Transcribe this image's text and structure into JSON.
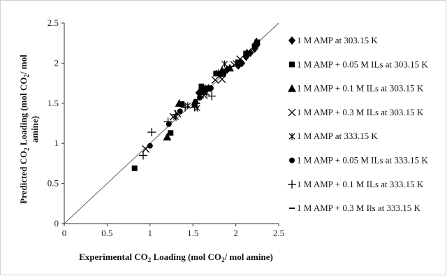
{
  "chart_data": {
    "type": "scatter",
    "xlabel": {
      "pre": "Experimental CO",
      "sub": "2",
      "mid": " Loading (mol CO",
      "sub2": "2",
      "post": "/ mol amine)"
    },
    "ylabel": {
      "line1_pre": "Predicted CO",
      "line1_sub": "2",
      "line1_mid": " Loading (mol CO",
      "line1_sub2": "2",
      "line1_post": "/ mol",
      "line2": "amine)"
    },
    "xlim": [
      0,
      2.5
    ],
    "ylim": [
      0,
      2.5
    ],
    "xticks": [
      "0",
      "0.5",
      "1",
      "1.5",
      "2",
      "2.5"
    ],
    "yticks": [
      "0",
      "0.5",
      "1",
      "1.5",
      "2",
      "2.5"
    ],
    "grid": false,
    "parity_line": true,
    "legend_position": "right",
    "series": [
      {
        "name": "1 M AMP at 303.15 K",
        "marker": "diamond",
        "points": [
          [
            1.57,
            1.63
          ],
          [
            1.62,
            1.65
          ],
          [
            1.65,
            1.68
          ],
          [
            1.82,
            1.86
          ],
          [
            1.9,
            1.92
          ],
          [
            2.03,
            1.97
          ],
          [
            2.07,
            2.0
          ],
          [
            2.12,
            2.08
          ],
          [
            2.17,
            2.13
          ],
          [
            2.22,
            2.18
          ],
          [
            2.24,
            2.22
          ]
        ]
      },
      {
        "name": "1 M AMP + 0.05 M ILs at 303.15 K",
        "marker": "square",
        "points": [
          [
            0.82,
            0.69
          ],
          [
            1.24,
            1.13
          ],
          [
            1.37,
            1.49
          ],
          [
            1.52,
            1.48
          ],
          [
            1.6,
            1.71
          ],
          [
            1.77,
            1.87
          ],
          [
            2.03,
            2.01
          ],
          [
            2.12,
            2.12
          ],
          [
            2.22,
            2.21
          ],
          [
            2.25,
            2.26
          ]
        ]
      },
      {
        "name": "1 M AMP + 0.1 M ILs at 303.15 K",
        "marker": "triangle",
        "points": [
          [
            1.2,
            1.08
          ],
          [
            1.34,
            1.5
          ],
          [
            1.6,
            1.67
          ],
          [
            1.68,
            1.69
          ],
          [
            1.84,
            1.91
          ],
          [
            1.93,
            1.94
          ],
          [
            2.13,
            2.13
          ],
          [
            2.24,
            2.27
          ]
        ]
      },
      {
        "name": "1 M AMP + 0.3 M ILs at 303.15 K",
        "marker": "x",
        "points": [
          [
            0.95,
            0.93
          ],
          [
            1.27,
            1.33
          ],
          [
            1.32,
            1.37
          ],
          [
            1.63,
            1.6
          ],
          [
            1.76,
            1.79
          ],
          [
            1.84,
            1.8
          ],
          [
            1.98,
            1.98
          ],
          [
            2.05,
            2.05
          ]
        ]
      },
      {
        "name": "1 M AMP at 333.15 K",
        "marker": "asterisk",
        "points": [
          [
            1.3,
            1.33
          ],
          [
            1.44,
            1.47
          ],
          [
            1.55,
            1.44
          ],
          [
            1.66,
            1.63
          ],
          [
            1.8,
            1.88
          ],
          [
            1.87,
            1.99
          ],
          [
            2.0,
            2.0
          ]
        ]
      },
      {
        "name": "1 M AMP + 0.05 M ILs at 333.15 K",
        "marker": "circle",
        "points": [
          [
            1.0,
            0.97
          ],
          [
            1.22,
            1.24
          ],
          [
            1.35,
            1.4
          ],
          [
            1.53,
            1.52
          ],
          [
            1.58,
            1.57
          ],
          [
            1.71,
            1.69
          ],
          [
            1.86,
            1.87
          ]
        ]
      },
      {
        "name": "1 M AMP + 0.1 M ILs at 333.15 K",
        "marker": "plus",
        "points": [
          [
            0.92,
            0.85
          ],
          [
            1.02,
            1.14
          ],
          [
            1.21,
            1.27
          ],
          [
            1.3,
            1.36
          ],
          [
            1.41,
            1.45
          ],
          [
            1.52,
            1.45
          ],
          [
            1.62,
            1.61
          ],
          [
            1.72,
            1.59
          ]
        ]
      },
      {
        "name": "1 M AMP + 0.3 M Ils at 333.15 K",
        "marker": "dash",
        "points": [
          [
            1.55,
            1.5
          ],
          [
            1.68,
            1.67
          ],
          [
            1.85,
            1.84
          ],
          [
            1.95,
            1.96
          ]
        ]
      }
    ]
  }
}
